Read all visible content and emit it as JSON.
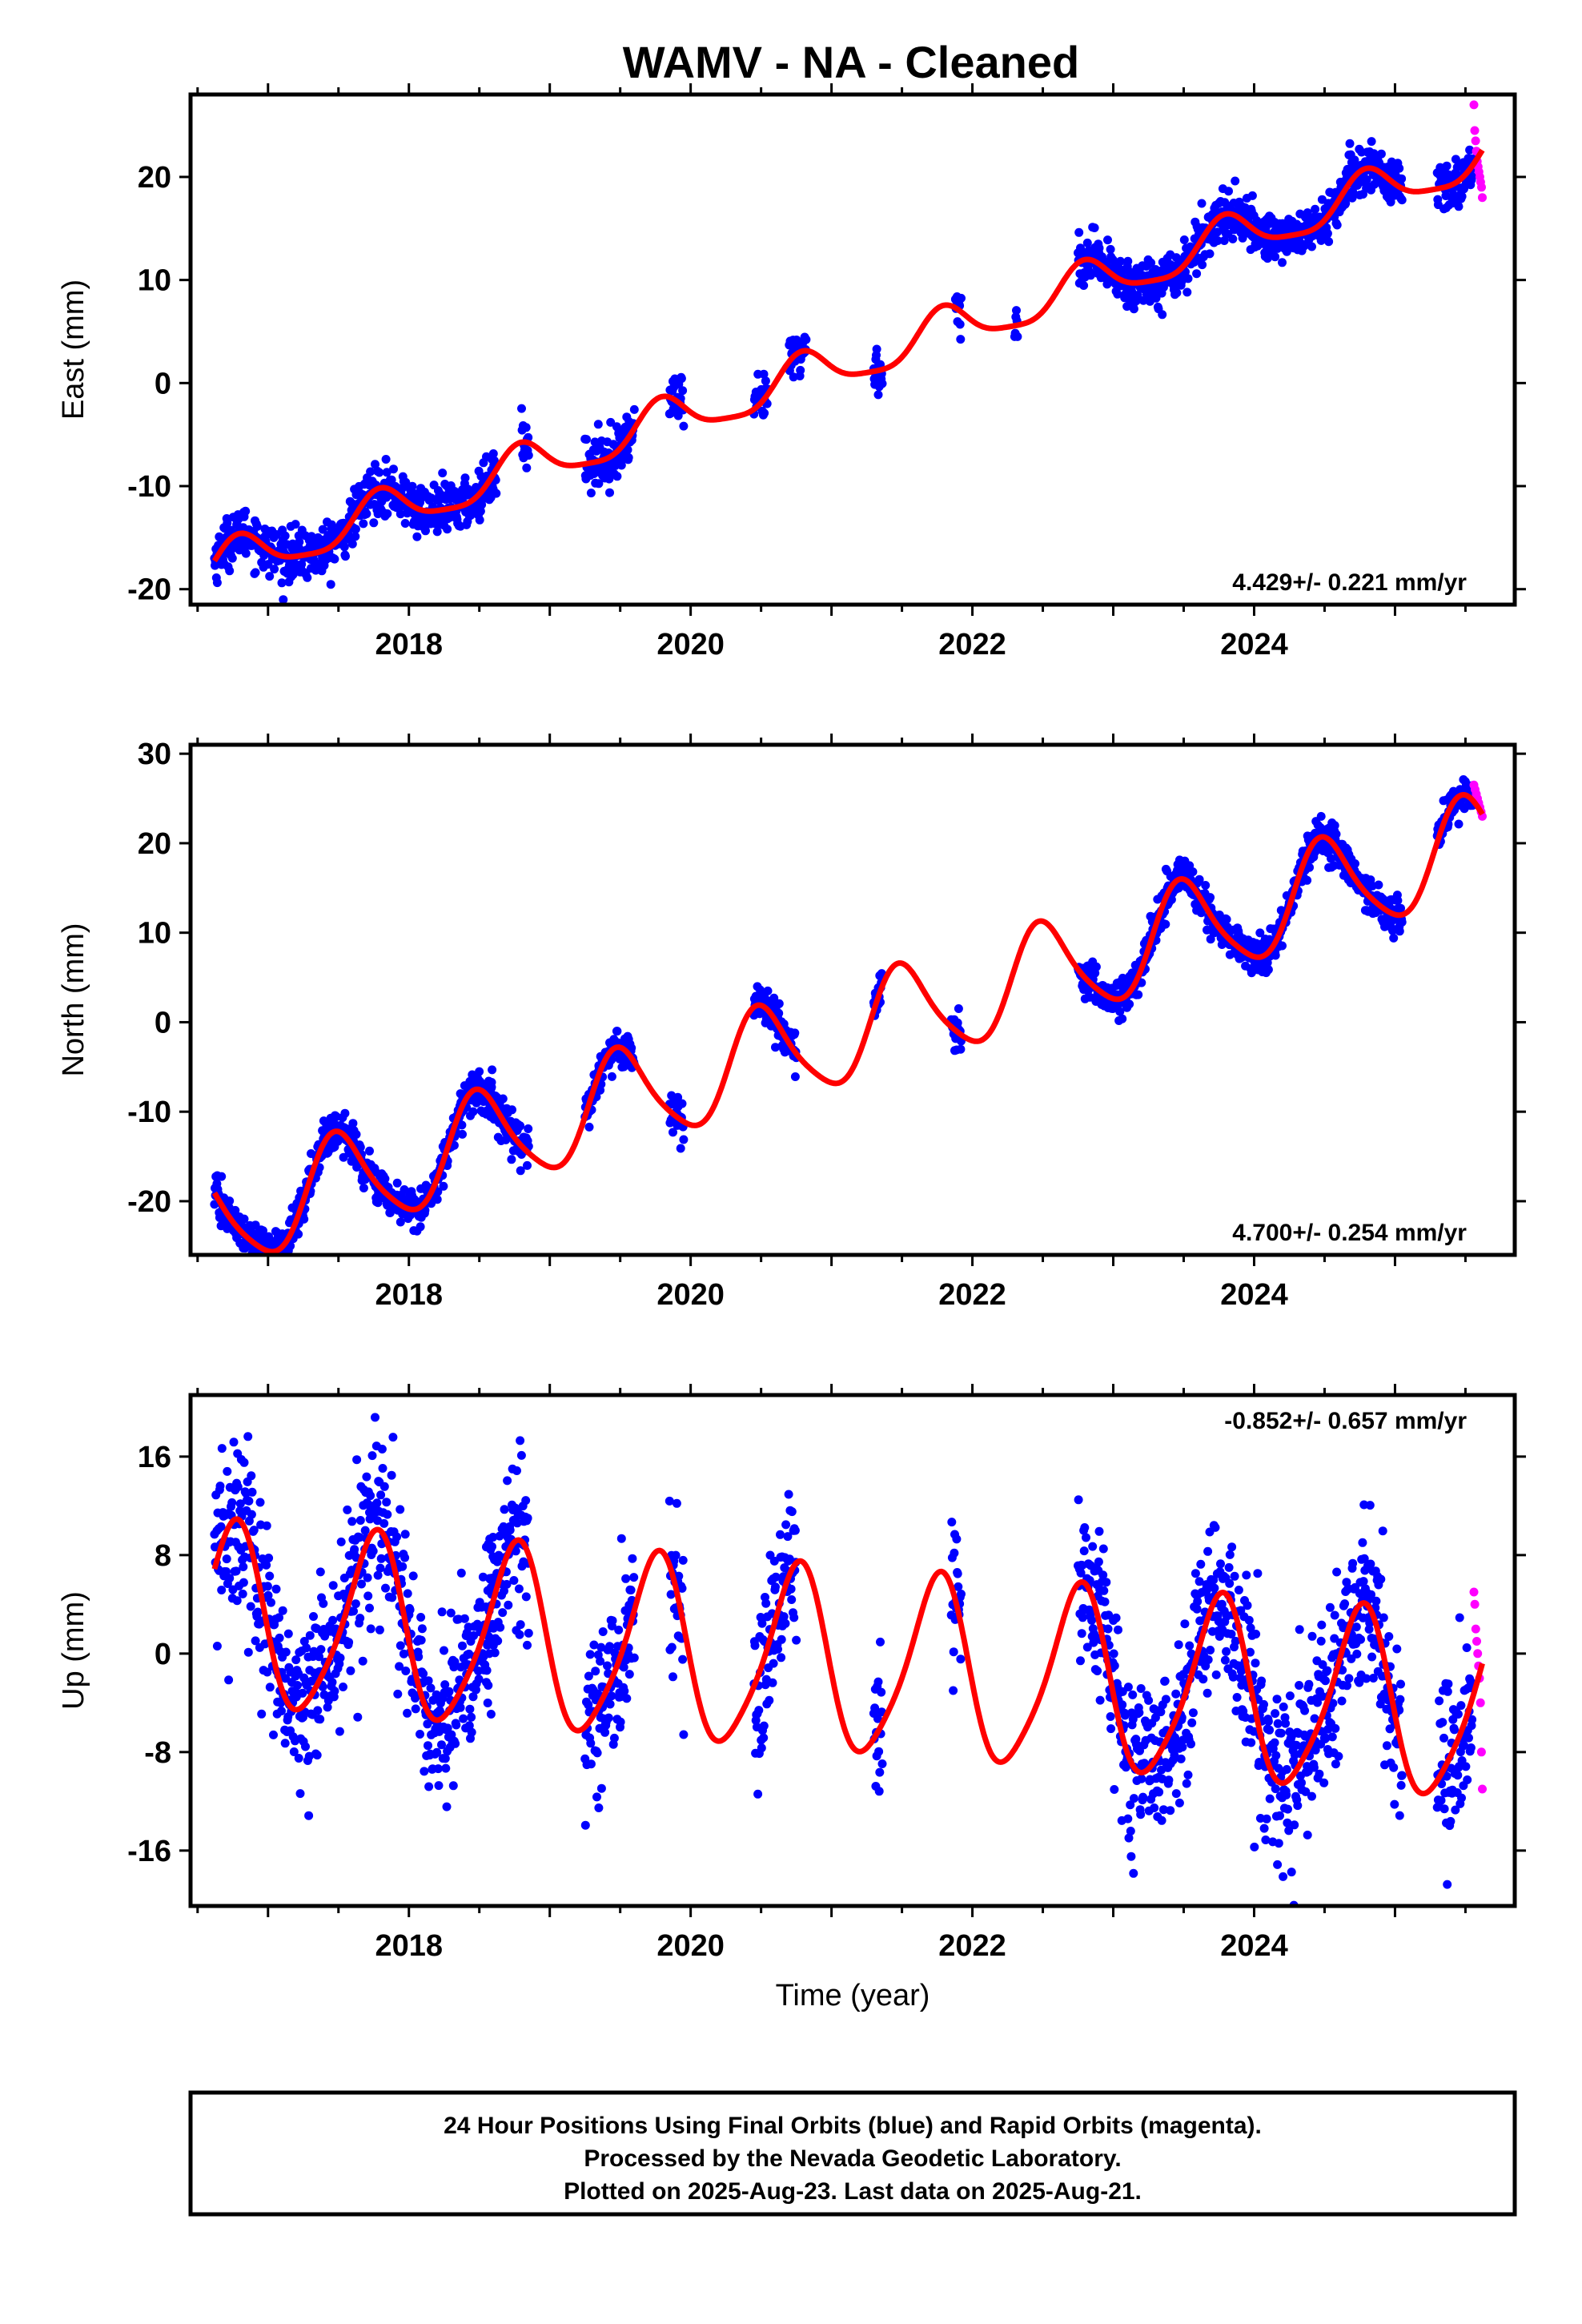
{
  "title": "WAMV  - NA - Cleaned",
  "colors": {
    "final": "#0000ff",
    "rapid": "#ff00ff",
    "fit": "#ff0000",
    "frame": "#000000"
  },
  "chart_data": [
    {
      "type": "scatter",
      "name": "east",
      "ylabel": "East (mm)",
      "xlabel": "",
      "xlim": [
        2016.45,
        2025.85
      ],
      "ylim": [
        -21.5,
        28
      ],
      "xticks": [
        2018,
        2020,
        2022,
        2024
      ],
      "xtick_labels": [
        "2018",
        "2020",
        "2022",
        "2024"
      ],
      "yticks": [
        -20,
        -10,
        0,
        10,
        20
      ],
      "ytick_labels": [
        "-20",
        "-10",
        "0",
        "10",
        "20"
      ],
      "rate": "4.429+/- 0.221 mm/yr",
      "rate_position": "bottom-right",
      "trend": {
        "t0": 2020.0,
        "slope": 4.429,
        "intercept": -3.0,
        "annual_amp": 2.1,
        "annual_phase": 0.55,
        "semi_amp": 0.5,
        "semi_phase": 0.15
      },
      "final_segments": [
        [
          2016.62,
          2017.72
        ],
        [
          2017.72,
          2018.6
        ],
        [
          2018.55,
          2018.62
        ],
        [
          2018.8,
          2018.85
        ],
        [
          2019.25,
          2019.6
        ],
        [
          2019.85,
          2019.95
        ],
        [
          2020.45,
          2020.55
        ],
        [
          2020.7,
          2020.82
        ],
        [
          2021.3,
          2021.36
        ],
        [
          2021.88,
          2021.92
        ],
        [
          2022.3,
          2022.32
        ],
        [
          2022.75,
          2025.05
        ],
        [
          2025.3,
          2025.55
        ]
      ],
      "final_noise": 1.2,
      "rapid_range": [
        2025.56,
        2025.62
      ],
      "rapid_values": [
        27,
        24.5,
        23.5,
        22.5,
        21.5,
        21,
        20.5,
        20,
        19.5,
        19,
        18
      ]
    },
    {
      "type": "scatter",
      "name": "north",
      "ylabel": "North (mm)",
      "xlabel": "",
      "xlim": [
        2016.45,
        2025.85
      ],
      "ylim": [
        -26,
        31
      ],
      "xticks": [
        2018,
        2020,
        2022,
        2024
      ],
      "xtick_labels": [
        "2018",
        "2020",
        "2022",
        "2024"
      ],
      "yticks": [
        -20,
        -10,
        0,
        10,
        20,
        30
      ],
      "ytick_labels": [
        "-20",
        "-10",
        "0",
        "10",
        "20",
        "30"
      ],
      "rate": "4.700+/- 0.254 mm/yr",
      "rate_position": "bottom-right",
      "trend": {
        "t0": 2020.0,
        "slope": 4.7,
        "intercept": -6.5,
        "annual_amp": 5.5,
        "annual_phase": 0.25,
        "semi_amp": 0.9,
        "semi_phase": 0.3
      },
      "final_segments": [
        [
          2016.62,
          2017.72
        ],
        [
          2017.72,
          2018.6
        ],
        [
          2018.55,
          2018.85
        ],
        [
          2019.25,
          2019.6
        ],
        [
          2019.85,
          2019.95
        ],
        [
          2020.45,
          2020.75
        ],
        [
          2021.3,
          2021.36
        ],
        [
          2021.85,
          2021.92
        ],
        [
          2022.75,
          2025.05
        ],
        [
          2025.3,
          2025.55
        ]
      ],
      "final_noise": 1.1,
      "rapid_range": [
        2025.56,
        2025.62
      ],
      "rapid_values": [
        26.5,
        26,
        25.5,
        25,
        24.5,
        24,
        23.5,
        23
      ]
    },
    {
      "type": "scatter",
      "name": "up",
      "ylabel": "Up (mm)",
      "xlabel": "Time (year)",
      "xlim": [
        2016.45,
        2025.85
      ],
      "ylim": [
        -20.5,
        21
      ],
      "xticks": [
        2018,
        2020,
        2022,
        2024
      ],
      "xtick_labels": [
        "2018",
        "2020",
        "2022",
        "2024"
      ],
      "yticks": [
        -16,
        -8,
        0,
        8,
        16
      ],
      "ytick_labels": [
        "-16",
        "-8",
        "0",
        "8",
        "16"
      ],
      "rate": "-0.852+/- 0.657 mm/yr",
      "rate_position": "top-right",
      "trend": {
        "t0": 2020.0,
        "slope": -0.852,
        "intercept": 0.0,
        "annual_amp": 7.3,
        "annual_phase": 0.5,
        "semi_amp": 1.2,
        "semi_phase": 0.2
      },
      "final_segments": [
        [
          2016.62,
          2017.72
        ],
        [
          2017.72,
          2018.6
        ],
        [
          2018.55,
          2018.85
        ],
        [
          2019.25,
          2019.6
        ],
        [
          2019.85,
          2019.95
        ],
        [
          2020.45,
          2020.75
        ],
        [
          2021.3,
          2021.36
        ],
        [
          2021.85,
          2021.92
        ],
        [
          2022.75,
          2025.05
        ],
        [
          2025.3,
          2025.55
        ]
      ],
      "final_noise": 3.5,
      "rapid_range": [
        2025.56,
        2025.62
      ],
      "rapid_values": [
        5,
        4,
        2,
        1,
        0,
        -1,
        -2,
        -4,
        -8,
        -11
      ]
    }
  ],
  "caption": {
    "line1": "24 Hour Positions Using Final Orbits (blue) and Rapid Orbits (magenta).",
    "line2": "Processed by the Nevada Geodetic Laboratory.",
    "line3": "Plotted on 2025-Aug-23. Last data on 2025-Aug-21."
  }
}
